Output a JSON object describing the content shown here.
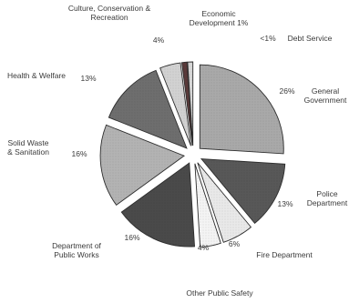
{
  "chart_data": {
    "type": "pie",
    "style": "exploded",
    "slices": [
      {
        "label": "General Government",
        "label_lines": [
          "General",
          "Government"
        ],
        "value": 26,
        "value_label": "26%",
        "color": "#a9a9a9"
      },
      {
        "label": "Police Department",
        "label_lines": [
          "Police",
          "Department"
        ],
        "value": 13,
        "value_label": "13%",
        "color": "#585858"
      },
      {
        "label": "Fire Department",
        "label_lines": [
          "Fire Department"
        ],
        "value": 6,
        "value_label": "6%",
        "color": "#e9e9e9"
      },
      {
        "label": "Other Public Safety",
        "label_lines": [
          "Other Public Safety"
        ],
        "value": 4,
        "value_label": "4%",
        "color": "#f4f4f4"
      },
      {
        "label": "Department of Public Works",
        "label_lines": [
          "Department of",
          "Public Works"
        ],
        "value": 16,
        "value_label": "16%",
        "color": "#4a4a4a"
      },
      {
        "label": "Solid Waste & Sanitation",
        "label_lines": [
          "Solid Waste",
          "& Sanitation"
        ],
        "value": 16,
        "value_label": "16%",
        "color": "#b3b3b3"
      },
      {
        "label": "Health & Welfare",
        "label_lines": [
          "Health & Welfare"
        ],
        "value": 13,
        "value_label": "13%",
        "color": "#6e6e6e"
      },
      {
        "label": "Culture, Conservation & Recreation",
        "label_lines": [
          "Culture, Conservation &",
          "Recreation"
        ],
        "value": 4,
        "value_label": "4%",
        "color": "#d2d2d2"
      },
      {
        "label": "Economic Development",
        "label_lines": [
          "Economic",
          "Development 1%"
        ],
        "value": 1,
        "value_label": "",
        "color": "#5a3a3a"
      },
      {
        "label": "Debt Service",
        "label_lines": [
          "Debt Service"
        ],
        "value": 1,
        "value_label": "<1%",
        "color": "#d8d8d8"
      }
    ]
  }
}
